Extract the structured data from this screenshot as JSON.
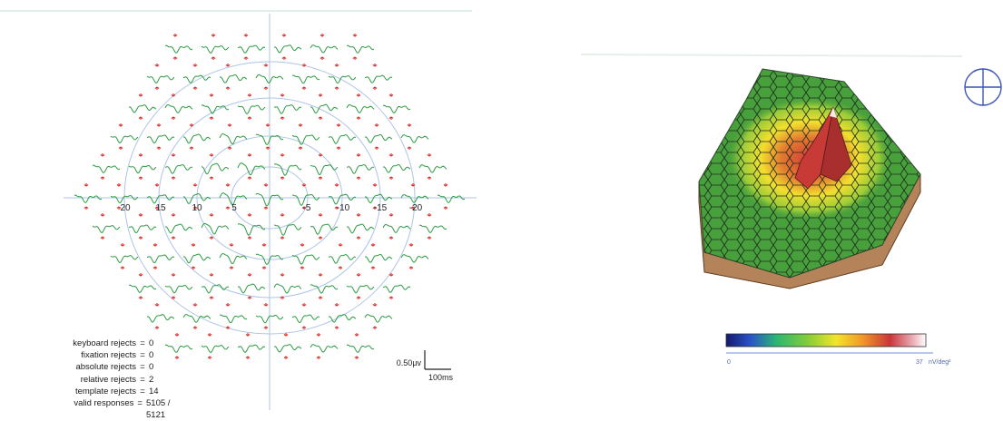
{
  "trace_panel": {
    "eccentricity_labels": [
      "20",
      "15",
      "10",
      "5",
      "-5",
      "-10",
      "-15",
      "-20"
    ],
    "scale_bar": {
      "amplitude_label": "0.50µv",
      "time_label": "100ms"
    },
    "rejects": [
      {
        "label": "keyboard rejects",
        "value": "0"
      },
      {
        "label": "fixation rejects",
        "value": "0"
      },
      {
        "label": "absolute rejects",
        "value": "0"
      },
      {
        "label": "relative rejects",
        "value": "2"
      },
      {
        "label": "template rejects",
        "value": "14"
      },
      {
        "label": "valid responses",
        "value": "5105 / 5121"
      }
    ],
    "colors": {
      "trace": "#2e9c43",
      "marker": "#e0302a",
      "ring": "#aec4e8",
      "axis": "#aec4e8"
    }
  },
  "surface_panel": {
    "colorbar": {
      "min_label": "0",
      "max_label": "37",
      "unit_label": "nV/deg²"
    },
    "colors": {
      "base": "#3f9a3a",
      "peak": "#c23a34",
      "soil": "#b5835a",
      "edge": "#1d2a1d",
      "line": "#8fa8d8"
    },
    "icon": "fixation-crosshair-icon"
  }
}
